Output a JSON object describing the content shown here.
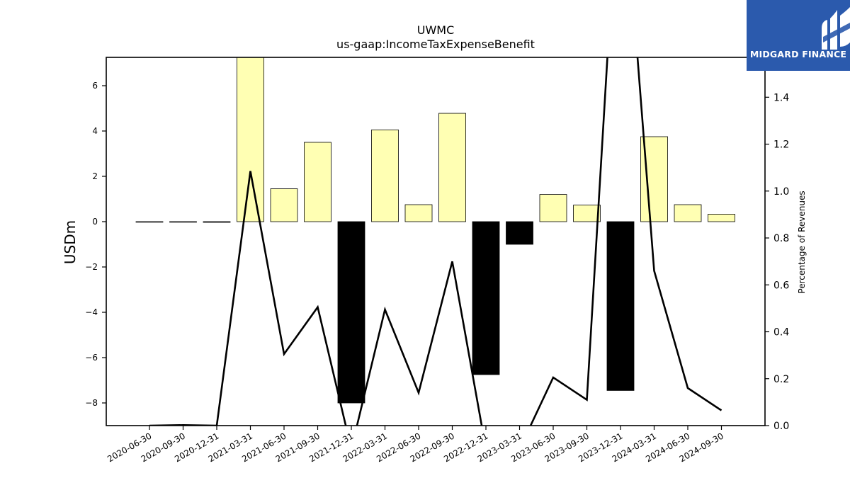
{
  "chart_data": {
    "type": "bar",
    "title": "UWMC",
    "subtitle": "us-gaap:IncomeTaxExpenseBenefit",
    "ylabel": "USDm",
    "y2label": "Percentage of Revenues",
    "ylim": [
      -9,
      7.25
    ],
    "y2lim": [
      0.0,
      1.57
    ],
    "yticks": [
      6,
      4,
      2,
      0,
      -2,
      -4,
      -6,
      -8
    ],
    "y2ticks": [
      0.0,
      0.2,
      0.4,
      0.6,
      0.8,
      1.0,
      1.2,
      1.4
    ],
    "categories": [
      "2020-06-30",
      "2020-09-30",
      "2020-12-31",
      "2021-03-31",
      "2021-06-30",
      "2021-09-30",
      "2021-12-31",
      "2022-03-31",
      "2022-06-30",
      "2022-09-30",
      "2022-12-31",
      "2023-03-31",
      "2023-06-30",
      "2023-09-30",
      "2023-12-31",
      "2024-03-31",
      "2024-06-30",
      "2024-09-30"
    ],
    "series": [
      {
        "kind": "bar",
        "axis": "left",
        "values": [
          0.0,
          0.0,
          -0.03,
          7.5,
          1.45,
          3.5,
          -8.0,
          4.05,
          0.75,
          4.78,
          -6.75,
          -1.0,
          1.2,
          0.73,
          -7.45,
          3.75,
          0.75,
          0.33
        ],
        "positive_color": "#ffffb3",
        "negative_color": "#000000"
      },
      {
        "kind": "line",
        "axis": "right",
        "values": [
          0.0,
          0.002,
          0.0,
          1.085,
          0.305,
          0.505,
          -0.1,
          0.495,
          0.14,
          0.7,
          -0.1,
          -0.1,
          0.205,
          0.11,
          2.5,
          0.66,
          0.16,
          0.065
        ],
        "color": "#000000"
      }
    ]
  },
  "logo": {
    "text": "MIDGARD FINANCE",
    "color": "#2b5aad"
  }
}
